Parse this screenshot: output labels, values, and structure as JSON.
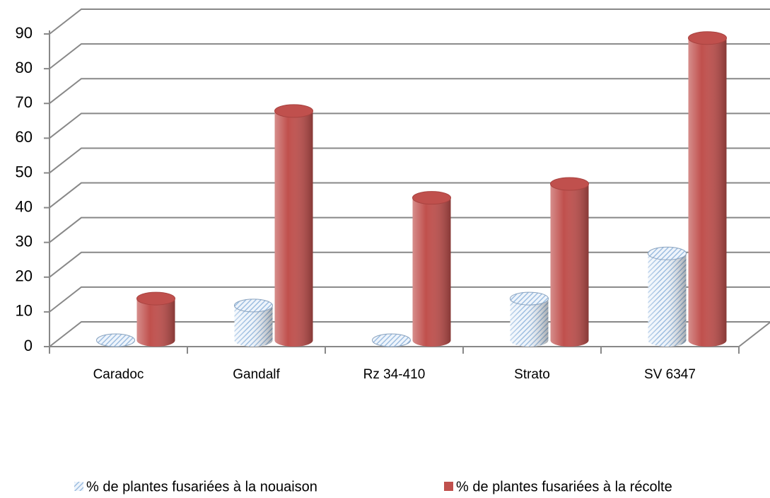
{
  "chart_data": {
    "type": "bar3d",
    "categories": [
      "Caradoc",
      "Gandalf",
      "Rz 34-410",
      "Strato",
      "SV 6347"
    ],
    "series": [
      {
        "name": "% de plantes fusariées à la nouaison",
        "color": "#8fb4dc",
        "values": [
          0,
          10,
          0,
          12,
          25
        ]
      },
      {
        "name": "% de plantes fusariées à la récolte",
        "color": "#c0504d",
        "values": [
          12,
          66,
          41,
          45,
          87
        ]
      }
    ],
    "ylim": [
      0,
      90
    ],
    "yticks": [
      0,
      10,
      20,
      30,
      40,
      50,
      60,
      70,
      80,
      90
    ],
    "grid": true
  }
}
